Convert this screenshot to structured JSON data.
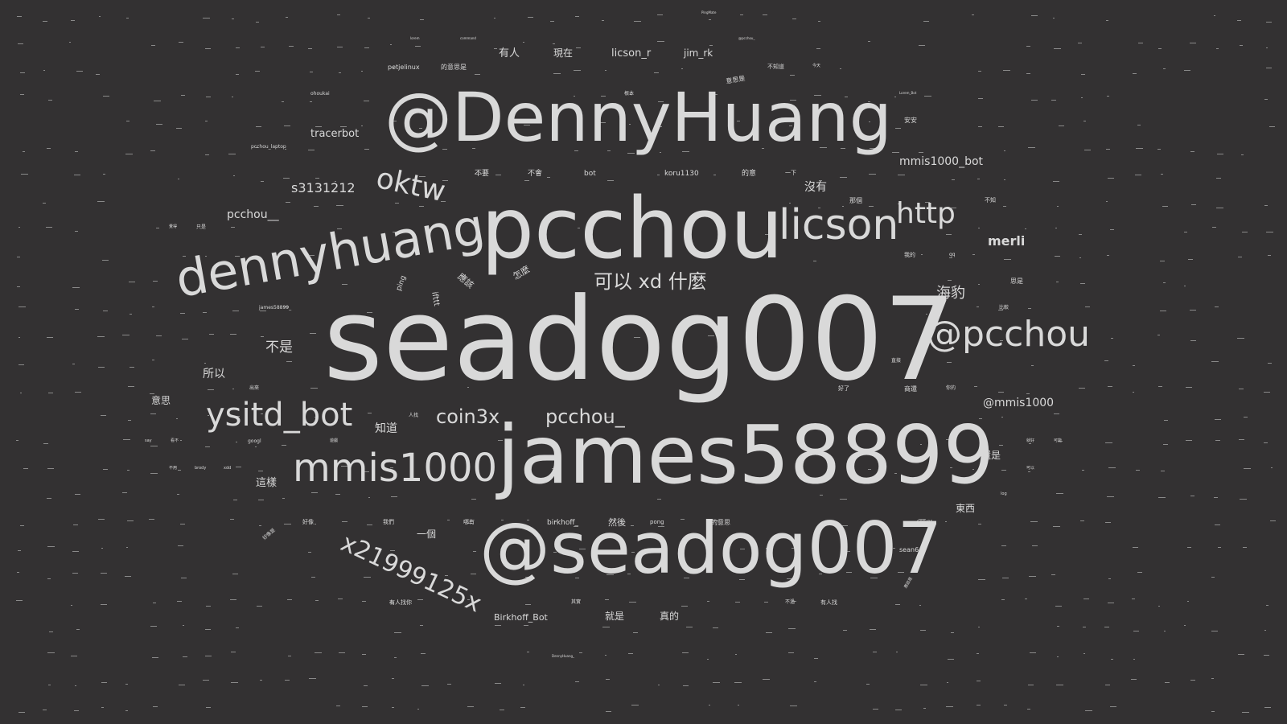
{
  "cloud": {
    "text_color": "#d9d9d9",
    "background": "#333132",
    "words": [
      {
        "text": "seadog007",
        "weight": 100
      },
      {
        "text": "james58899",
        "weight": 78
      },
      {
        "text": "pcchou",
        "weight": 82
      },
      {
        "text": "@seadog007",
        "weight": 68
      },
      {
        "text": "@DennyHuang",
        "weight": 66
      },
      {
        "text": "dennyhuang",
        "weight": 56
      },
      {
        "text": "licson",
        "weight": 40
      },
      {
        "text": "@pcchou",
        "weight": 36
      },
      {
        "text": "mmis1000",
        "weight": 38
      },
      {
        "text": "ysitd_bot",
        "weight": 34
      },
      {
        "text": "x21999125x",
        "weight": 28
      },
      {
        "text": "oktw",
        "weight": 30
      },
      {
        "text": "http",
        "weight": 30
      },
      {
        "text": "coin3x",
        "weight": 20
      },
      {
        "text": "pcchou_",
        "weight": 20
      },
      {
        "text": "可以 xd 什麼",
        "weight": 20
      },
      {
        "text": "merli",
        "weight": 14
      },
      {
        "text": "海豹",
        "weight": 16
      },
      {
        "text": "s3131212",
        "weight": 14
      },
      {
        "text": "pcchou__",
        "weight": 12
      },
      {
        "text": "tracerbot",
        "weight": 11
      },
      {
        "text": "mmis1000_bot",
        "weight": 12
      },
      {
        "text": "@mmis1000",
        "weight": 12
      },
      {
        "text": "不是",
        "weight": 15
      },
      {
        "text": "所以",
        "weight": 12
      },
      {
        "text": "知道",
        "weight": 12
      },
      {
        "text": "沒有",
        "weight": 12
      },
      {
        "text": "licson_r",
        "weight": 11
      },
      {
        "text": "jim_rk",
        "weight": 10
      },
      {
        "text": "有人",
        "weight": 11
      },
      {
        "text": "現在",
        "weight": 10
      },
      {
        "text": "這樣",
        "weight": 11
      },
      {
        "text": "還是",
        "weight": 10
      },
      {
        "text": "東西",
        "weight": 10
      },
      {
        "text": "一個",
        "weight": 10
      },
      {
        "text": "意思",
        "weight": 10
      },
      {
        "text": "就是",
        "weight": 10
      },
      {
        "text": "真的",
        "weight": 10
      },
      {
        "text": "然後",
        "weight": 9
      },
      {
        "text": "Birkhoff_Bot",
        "weight": 9
      },
      {
        "text": "birkhoff_",
        "weight": 8
      },
      {
        "text": "koru1130",
        "weight": 8
      },
      {
        "text": "bot",
        "weight": 8
      },
      {
        "text": "不要",
        "weight": 8
      },
      {
        "text": "不會",
        "weight": 8
      },
      {
        "text": "的意",
        "weight": 8
      },
      {
        "text": "應該",
        "weight": 9
      },
      {
        "text": "怎麼",
        "weight": 9
      },
      {
        "text": "ping",
        "weight": 8
      },
      {
        "text": "ifttt",
        "weight": 8
      },
      {
        "text": "petjelinux",
        "weight": 7
      },
      {
        "text": "的意思是",
        "weight": 7
      },
      {
        "text": "sean64",
        "weight": 7
      },
      {
        "text": "pong",
        "weight": 6
      },
      {
        "text": "的意思",
        "weight": 7
      },
      {
        "text": "安安",
        "weight": 7
      },
      {
        "text": "那個",
        "weight": 7
      },
      {
        "text": "思是",
        "weight": 7
      },
      {
        "text": "商還",
        "weight": 7
      },
      {
        "text": "不知",
        "weight": 7
      },
      {
        "text": "不知道",
        "weight": 7
      },
      {
        "text": "意思是",
        "weight": 7
      },
      {
        "text": "一下",
        "weight": 7
      },
      {
        "text": "ohoukai",
        "weight": 6
      },
      {
        "text": "james58899_",
        "weight": 6
      },
      {
        "text": "pcchou_laptop",
        "weight": 6
      },
      {
        "text": "好了",
        "weight": 6
      },
      {
        "text": "我們",
        "weight": 6
      },
      {
        "text": "好像",
        "weight": 6
      },
      {
        "text": "哪有",
        "weight": 6
      },
      {
        "text": "有人找你",
        "weight": 6
      },
      {
        "text": "有人找",
        "weight": 6
      },
      {
        "text": "其實",
        "weight": 6
      },
      {
        "text": "不過",
        "weight": 6
      },
      {
        "text": "人找",
        "weight": 6
      },
      {
        "text": "比較",
        "weight": 5
      },
      {
        "text": "直接",
        "weight": 5
      },
      {
        "text": "你的",
        "weight": 5
      },
      {
        "text": "我的",
        "weight": 6
      },
      {
        "text": "qq",
        "weight": 5
      },
      {
        "text": "server",
        "weight": 5
      },
      {
        "text": "根本",
        "weight": 5
      },
      {
        "text": "出來",
        "weight": 5
      },
      {
        "text": "只是",
        "weight": 5
      },
      {
        "text": "覺得",
        "weight": 5
      },
      {
        "text": "不用",
        "weight": 5
      },
      {
        "text": "googl",
        "weight": 5
      },
      {
        "text": "xdd",
        "weight": 5
      },
      {
        "text": "brody",
        "weight": 5
      },
      {
        "text": "DennyHuang_",
        "weight": 4
      },
      {
        "text": "PingMate",
        "weight": 4
      },
      {
        "text": "@pcchou_",
        "weight": 4
      },
      {
        "text": "Lorem_Bot",
        "weight": 4
      },
      {
        "text": "lorem",
        "weight": 4
      },
      {
        "text": "command",
        "weight": 4
      },
      {
        "text": "今天",
        "weight": 4
      },
      {
        "text": "log",
        "weight": 4
      },
      {
        "text": "say",
        "weight": 4
      },
      {
        "text": "遊戲",
        "weight": 4
      },
      {
        "text": "看不",
        "weight": 4
      },
      {
        "text": "就好",
        "weight": 4
      },
      {
        "text": "可能",
        "weight": 4
      },
      {
        "text": "應該是",
        "weight": 4
      },
      {
        "text": "好像是",
        "weight": 4
      },
      {
        "text": "可以",
        "weight": 4
      }
    ]
  }
}
